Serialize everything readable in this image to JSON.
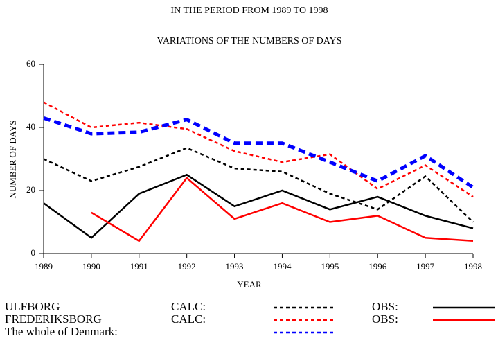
{
  "chart_data": {
    "type": "line",
    "title": "IN THE PERIOD FROM 1989 TO 1998",
    "subtitle": "VARIATIONS OF THE NUMBERS OF DAYS",
    "xlabel": "YEAR",
    "ylabel": "NUMBER OF DAYS",
    "x": [
      1989,
      1990,
      1991,
      1992,
      1993,
      1994,
      1995,
      1996,
      1997,
      1998
    ],
    "xlim": [
      1989,
      1998
    ],
    "xticks": [
      1989,
      1990,
      1991,
      1992,
      1993,
      1994,
      1995,
      1996,
      1997,
      1998
    ],
    "ylim": [
      0,
      60
    ],
    "yticks": [
      0,
      20,
      40,
      60
    ],
    "groups": [
      {
        "name": "ULFBORG",
        "series": [
          {
            "name": "CALC:",
            "color": "#000000",
            "dashed": true,
            "values": [
              30,
              23,
              27.5,
              33.5,
              27,
              26,
              19,
              14,
              24.5,
              10
            ]
          },
          {
            "name": "OBS:",
            "color": "#000000",
            "dashed": false,
            "values": [
              16,
              5,
              19,
              25,
              15,
              20,
              14,
              18,
              12,
              8
            ]
          }
        ]
      },
      {
        "name": "FREDERIKSBORG",
        "series": [
          {
            "name": "CALC:",
            "color": "#ff0000",
            "dashed": true,
            "values": [
              48,
              40,
              41.5,
              39.5,
              32.5,
              29,
              31.5,
              20.5,
              28,
              18
            ]
          },
          {
            "name": "OBS:",
            "color": "#ff0000",
            "dashed": false,
            "values": [
              null,
              13,
              4,
              24,
              11,
              16,
              10,
              12,
              5,
              4
            ]
          }
        ]
      },
      {
        "name": "The whole of Denmark:",
        "series": [
          {
            "color": "#0000ff",
            "dashed": true,
            "thick": true,
            "values": [
              43,
              38,
              38.5,
              42.5,
              35,
              35,
              29,
              23,
              31,
              21
            ]
          }
        ]
      }
    ]
  }
}
